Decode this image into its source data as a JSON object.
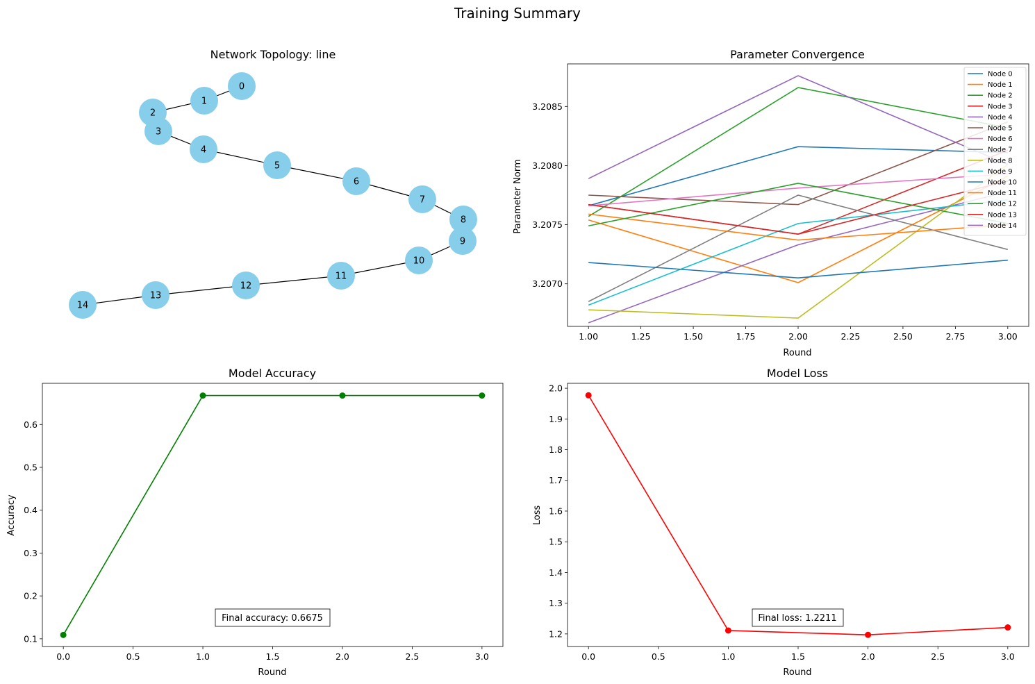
{
  "figure": {
    "title": "Training Summary"
  },
  "chart_data": [
    {
      "type": "network",
      "title": "Network Topology: line",
      "nodes": [
        "0",
        "1",
        "2",
        "3",
        "4",
        "5",
        "6",
        "7",
        "8",
        "9",
        "10",
        "11",
        "12",
        "13",
        "14"
      ],
      "edges": [
        [
          "0",
          "1"
        ],
        [
          "1",
          "2"
        ],
        [
          "2",
          "3"
        ],
        [
          "3",
          "4"
        ],
        [
          "4",
          "5"
        ],
        [
          "5",
          "6"
        ],
        [
          "6",
          "7"
        ],
        [
          "7",
          "8"
        ],
        [
          "8",
          "9"
        ],
        [
          "9",
          "10"
        ],
        [
          "10",
          "11"
        ],
        [
          "11",
          "12"
        ],
        [
          "12",
          "13"
        ],
        [
          "13",
          "14"
        ]
      ],
      "node_color": "#87CEEB",
      "edge_color": "#000000"
    },
    {
      "type": "line",
      "title": "Parameter Convergence",
      "xlabel": "Round",
      "ylabel": "Parameter Norm",
      "x": [
        1,
        2,
        3
      ],
      "xlim": [
        0.9,
        3.1
      ],
      "ylim": [
        3.20664,
        3.20886
      ],
      "xticks": [
        "1.00",
        "1.25",
        "1.50",
        "1.75",
        "2.00",
        "2.25",
        "2.50",
        "2.75",
        "3.00"
      ],
      "yticks": [
        "3.2070",
        "3.2075",
        "3.2080",
        "3.2085"
      ],
      "legend": "top-right",
      "series": [
        {
          "name": "Node 0",
          "color": "#1f77b4",
          "values": [
            3.20766,
            3.20816,
            3.20811
          ]
        },
        {
          "name": "Node 1",
          "color": "#ff7f0e",
          "values": [
            3.20754,
            3.20701,
            3.20791
          ]
        },
        {
          "name": "Node 2",
          "color": "#2ca02c",
          "values": [
            3.20757,
            3.20866,
            3.20832
          ]
        },
        {
          "name": "Node 3",
          "color": "#d62728",
          "values": [
            3.20767,
            3.20742,
            3.20813
          ]
        },
        {
          "name": "Node 4",
          "color": "#9467bd",
          "values": [
            3.20667,
            3.20733,
            3.20778
          ]
        },
        {
          "name": "Node 5",
          "color": "#8c564b",
          "values": [
            3.20775,
            3.20767,
            3.20837
          ]
        },
        {
          "name": "Node 6",
          "color": "#e377c2",
          "values": [
            3.20766,
            3.20781,
            3.20793
          ]
        },
        {
          "name": "Node 7",
          "color": "#7f7f7f",
          "values": [
            3.20685,
            3.20775,
            3.20729
          ]
        },
        {
          "name": "Node 8",
          "color": "#bcbd22",
          "values": [
            3.20678,
            3.20671,
            3.20801
          ]
        },
        {
          "name": "Node 9",
          "color": "#17becf",
          "values": [
            3.20682,
            3.20751,
            3.20771
          ]
        },
        {
          "name": "Node 10",
          "color": "#1f77b4",
          "values": [
            3.20718,
            3.20705,
            3.2072
          ]
        },
        {
          "name": "Node 11",
          "color": "#ff7f0e",
          "values": [
            3.20759,
            3.20737,
            3.2075
          ]
        },
        {
          "name": "Node 12",
          "color": "#2ca02c",
          "values": [
            3.20749,
            3.20785,
            3.20751
          ]
        },
        {
          "name": "Node 13",
          "color": "#d62728",
          "values": [
            3.20767,
            3.20742,
            3.20787
          ]
        },
        {
          "name": "Node 14",
          "color": "#9467bd",
          "values": [
            3.20789,
            3.20876,
            3.20801
          ]
        }
      ]
    },
    {
      "type": "line",
      "title": "Model Accuracy",
      "xlabel": "Round",
      "ylabel": "Accuracy",
      "x": [
        0,
        1,
        2,
        3
      ],
      "xlim": [
        -0.15,
        3.15
      ],
      "ylim": [
        0.082,
        0.696
      ],
      "xticks": [
        "0.0",
        "0.5",
        "1.0",
        "1.5",
        "2.0",
        "2.5",
        "3.0"
      ],
      "yticks": [
        "0.1",
        "0.2",
        "0.3",
        "0.4",
        "0.5",
        "0.6"
      ],
      "series": [
        {
          "color": "#008000",
          "values": [
            0.109,
            0.6675,
            0.6675,
            0.6675
          ]
        }
      ],
      "annotation": "Final accuracy: 0.6675"
    },
    {
      "type": "line",
      "title": "Model Loss",
      "xlabel": "Round",
      "ylabel": "Loss",
      "x": [
        0,
        1,
        2,
        3
      ],
      "xlim": [
        -0.15,
        3.15
      ],
      "ylim": [
        1.159,
        2.016
      ],
      "xticks": [
        "0.0",
        "0.5",
        "1.0",
        "1.5",
        "2.0",
        "2.5",
        "3.0"
      ],
      "yticks": [
        "1.2",
        "1.3",
        "1.4",
        "1.5",
        "1.6",
        "1.7",
        "1.8",
        "1.9",
        "2.0"
      ],
      "series": [
        {
          "color": "#ff0000",
          "values": [
            1.977,
            1.2111,
            1.197,
            1.2211
          ]
        }
      ],
      "annotation": "Final loss: 1.2211"
    }
  ]
}
